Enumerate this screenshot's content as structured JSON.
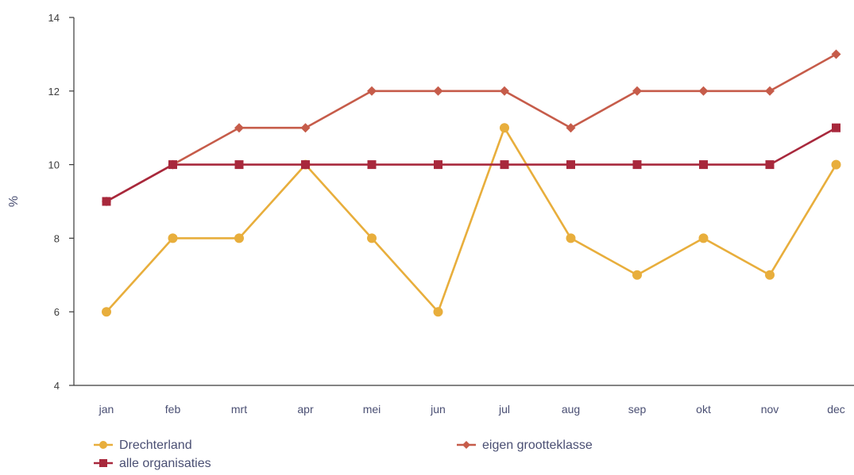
{
  "chart_data": {
    "type": "line",
    "title": "",
    "xlabel": "",
    "ylabel": "%",
    "ylim": [
      4,
      14
    ],
    "yticks": [
      4,
      6,
      8,
      10,
      12,
      14
    ],
    "grid": false,
    "legend_position": "bottom",
    "categories": [
      "jan",
      "feb",
      "mrt",
      "apr",
      "mei",
      "jun",
      "jul",
      "aug",
      "sep",
      "okt",
      "nov",
      "dec"
    ],
    "series": [
      {
        "name": "Drechterland",
        "color": "#e8ae3c",
        "marker": "circle",
        "values": [
          6,
          8,
          8,
          10,
          8,
          6,
          11,
          8,
          7,
          8,
          7,
          10
        ]
      },
      {
        "name": "eigen grootteklasse",
        "color": "#c65c4a",
        "marker": "diamond",
        "values": [
          9,
          10,
          11,
          11,
          12,
          12,
          12,
          11,
          12,
          12,
          12,
          13
        ]
      },
      {
        "name": "alle organisaties",
        "color": "#a8283c",
        "marker": "square",
        "values": [
          9,
          10,
          10,
          10,
          10,
          10,
          10,
          10,
          10,
          10,
          10,
          11
        ]
      }
    ]
  }
}
